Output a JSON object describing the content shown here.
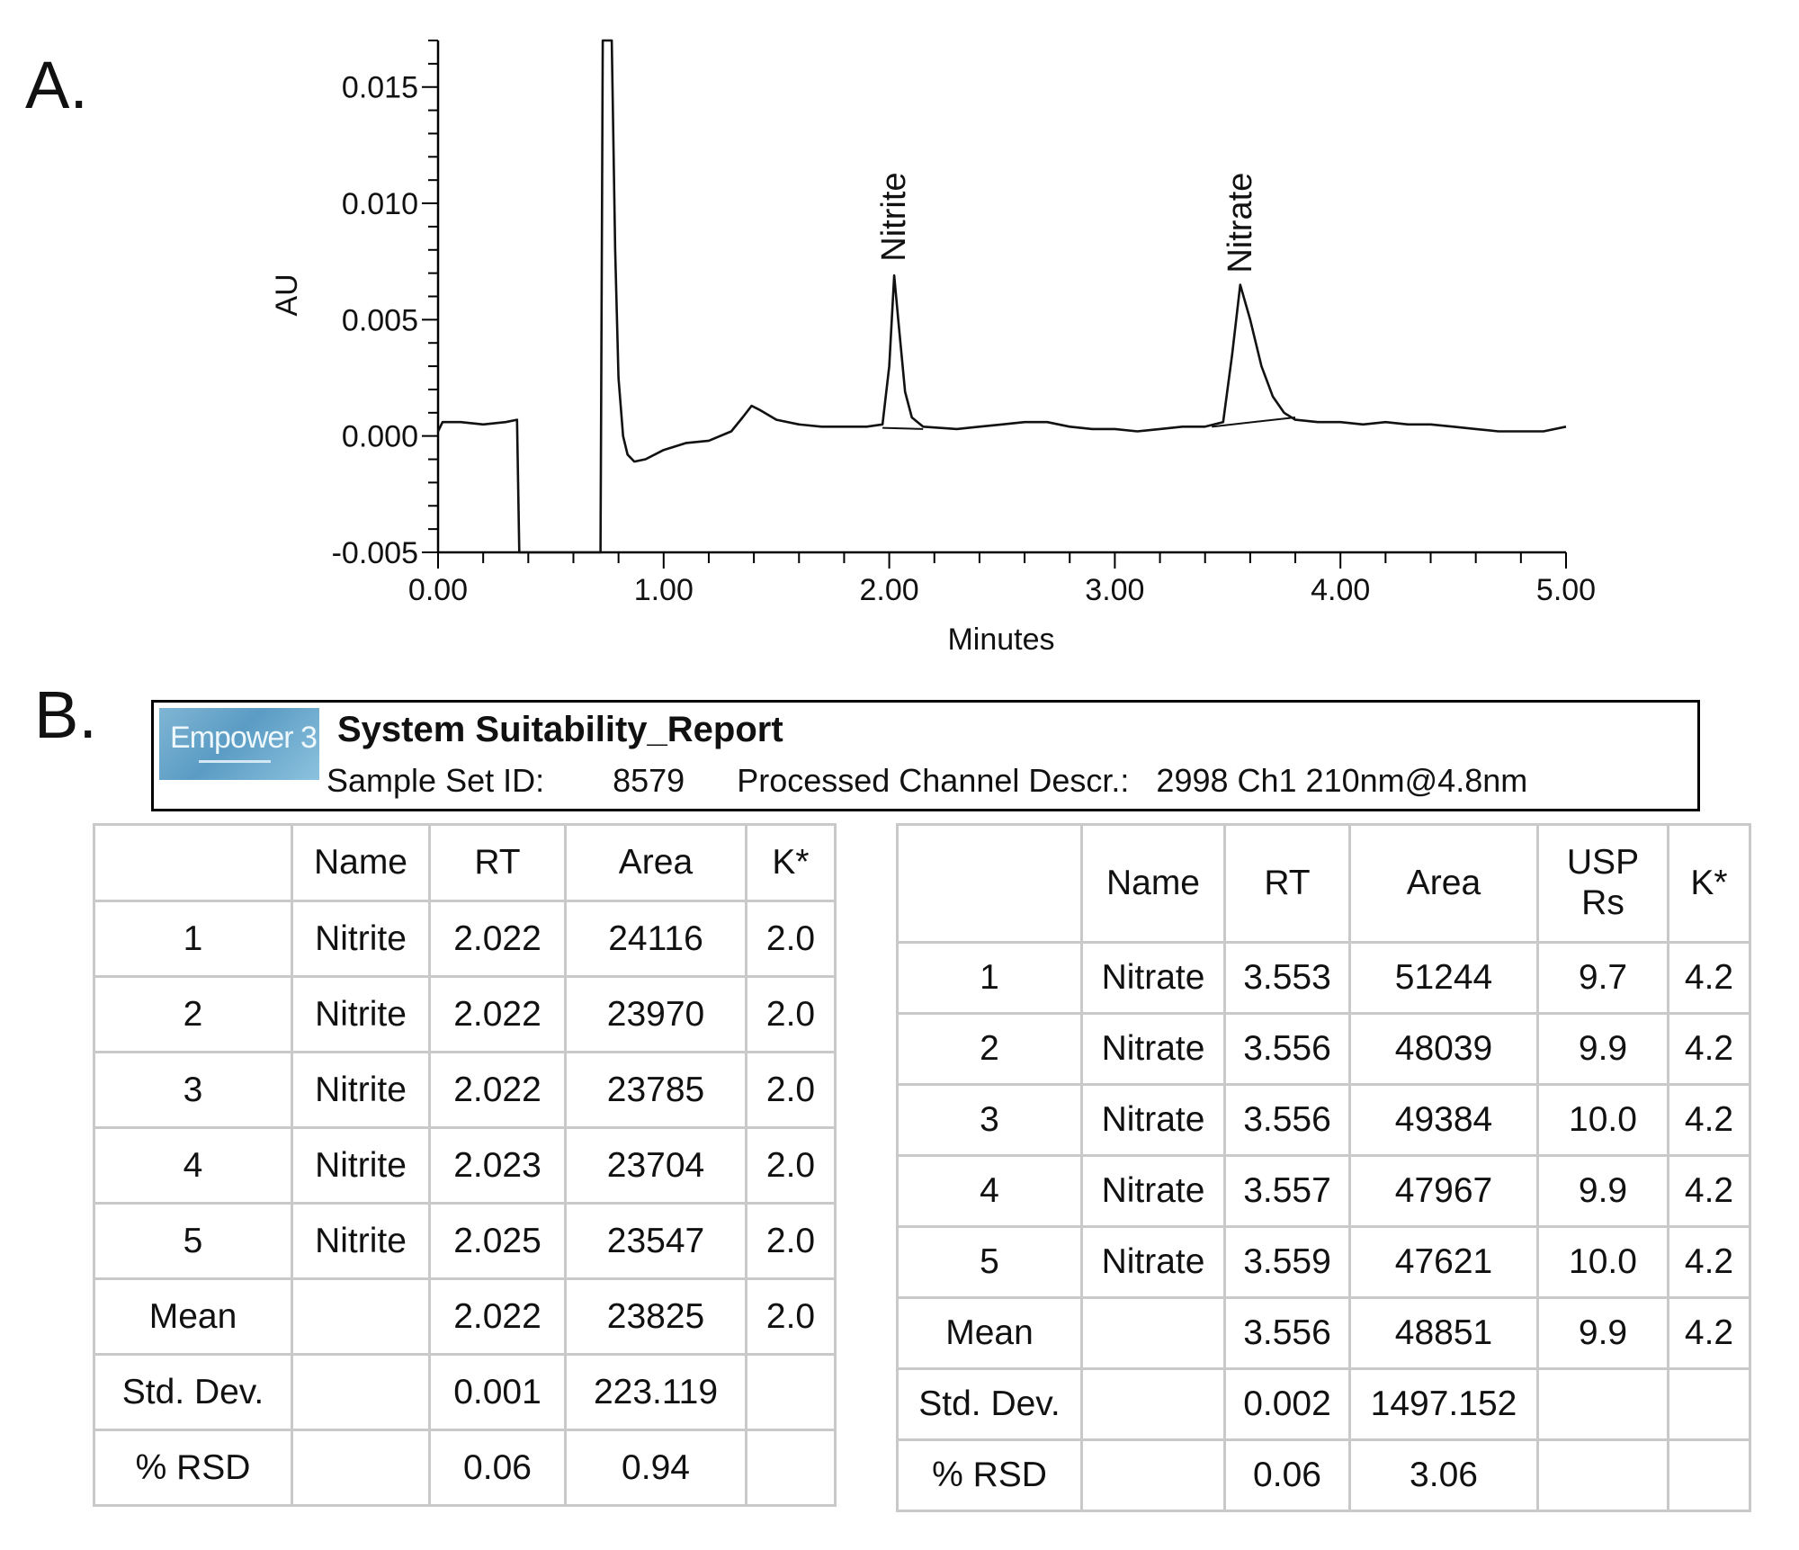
{
  "panels": {
    "a": "A.",
    "b": "B."
  },
  "chart_data": {
    "type": "line",
    "xlabel": "Minutes",
    "ylabel": "AU",
    "xlim": [
      0,
      5
    ],
    "ylim": [
      -0.005,
      0.017
    ],
    "x_ticks": [
      "0.00",
      "1.00",
      "2.00",
      "3.00",
      "4.00",
      "5.00"
    ],
    "y_ticks": [
      "-0.005",
      "0.000",
      "0.005",
      "0.010",
      "0.015"
    ],
    "x_tick_values": [
      0,
      1,
      2,
      3,
      4,
      5
    ],
    "y_tick_values": [
      -0.005,
      0,
      0.005,
      0.01,
      0.015
    ],
    "grid": false,
    "series": [
      {
        "points": [
          [
            0.0,
            0.0002
          ],
          [
            0.02,
            0.0006
          ],
          [
            0.1,
            0.0006
          ],
          [
            0.2,
            0.0005
          ],
          [
            0.3,
            0.0006
          ],
          [
            0.35,
            0.0007
          ],
          [
            0.36,
            -0.005
          ],
          [
            0.72,
            -0.005
          ],
          [
            0.73,
            0.017
          ],
          [
            0.77,
            0.017
          ],
          [
            0.785,
            0.008
          ],
          [
            0.8,
            0.0025
          ],
          [
            0.82,
            0.0
          ],
          [
            0.84,
            -0.0008
          ],
          [
            0.87,
            -0.0011
          ],
          [
            0.92,
            -0.001
          ],
          [
            1.0,
            -0.0006
          ],
          [
            1.1,
            -0.0003
          ],
          [
            1.2,
            -0.0002
          ],
          [
            1.3,
            0.0002
          ],
          [
            1.35,
            0.0008
          ],
          [
            1.39,
            0.0013
          ],
          [
            1.43,
            0.0011
          ],
          [
            1.5,
            0.0007
          ],
          [
            1.6,
            0.0005
          ],
          [
            1.7,
            0.0004
          ],
          [
            1.8,
            0.0004
          ],
          [
            1.9,
            0.0004
          ],
          [
            1.97,
            0.0005
          ],
          [
            2.0,
            0.003
          ],
          [
            2.022,
            0.0069
          ],
          [
            2.04,
            0.005
          ],
          [
            2.07,
            0.0019
          ],
          [
            2.1,
            0.0008
          ],
          [
            2.15,
            0.0004
          ],
          [
            2.3,
            0.0003
          ],
          [
            2.4,
            0.0004
          ],
          [
            2.5,
            0.0005
          ],
          [
            2.6,
            0.0006
          ],
          [
            2.7,
            0.0006
          ],
          [
            2.8,
            0.0004
          ],
          [
            2.9,
            0.0003
          ],
          [
            3.0,
            0.0003
          ],
          [
            3.1,
            0.0002
          ],
          [
            3.2,
            0.0003
          ],
          [
            3.3,
            0.0004
          ],
          [
            3.4,
            0.0004
          ],
          [
            3.48,
            0.0006
          ],
          [
            3.52,
            0.0035
          ],
          [
            3.556,
            0.0065
          ],
          [
            3.6,
            0.005
          ],
          [
            3.65,
            0.003
          ],
          [
            3.7,
            0.0017
          ],
          [
            3.75,
            0.001
          ],
          [
            3.8,
            0.0007
          ],
          [
            3.9,
            0.0006
          ],
          [
            4.0,
            0.0006
          ],
          [
            4.1,
            0.0005
          ],
          [
            4.2,
            0.0006
          ],
          [
            4.3,
            0.0005
          ],
          [
            4.4,
            0.0005
          ],
          [
            4.5,
            0.0004
          ],
          [
            4.6,
            0.0003
          ],
          [
            4.7,
            0.0002
          ],
          [
            4.8,
            0.0002
          ],
          [
            4.9,
            0.0002
          ],
          [
            5.0,
            0.0004
          ]
        ]
      }
    ],
    "baselines": [
      {
        "x": [
          1.97,
          2.15
        ],
        "y": [
          0.00035,
          0.0003
        ]
      },
      {
        "x": [
          3.43,
          3.8
        ],
        "y": [
          0.0004,
          0.0008
        ]
      }
    ],
    "annotations": [
      {
        "text": "Nitrite",
        "x": 2.022,
        "y": 0.0075,
        "rotation": -90
      },
      {
        "text": "Nitrate",
        "x": 3.556,
        "y": 0.007,
        "rotation": -90
      }
    ]
  },
  "report": {
    "logo": "Empower 3",
    "title": "System Suitability_Report",
    "sample_set_label": "Sample Set ID:",
    "sample_set_id": "8579",
    "channel_label": "Processed Channel Descr.:",
    "channel_value": "2998 Ch1 210nm@4.8nm"
  },
  "nitrite_table": {
    "headers": [
      "",
      "Name",
      "RT",
      "Area",
      "K*"
    ],
    "rows": [
      [
        "1",
        "Nitrite",
        "2.022",
        "24116",
        "2.0"
      ],
      [
        "2",
        "Nitrite",
        "2.022",
        "23970",
        "2.0"
      ],
      [
        "3",
        "Nitrite",
        "2.022",
        "23785",
        "2.0"
      ],
      [
        "4",
        "Nitrite",
        "2.023",
        "23704",
        "2.0"
      ],
      [
        "5",
        "Nitrite",
        "2.025",
        "23547",
        "2.0"
      ],
      [
        "Mean",
        "",
        "2.022",
        "23825",
        "2.0"
      ],
      [
        "Std. Dev.",
        "",
        "0.001",
        "223.119",
        ""
      ],
      [
        "% RSD",
        "",
        "0.06",
        "0.94",
        ""
      ]
    ]
  },
  "nitrate_table": {
    "headers": [
      "",
      "Name",
      "RT",
      "Area",
      "USP\nRs",
      "K*"
    ],
    "rows": [
      [
        "1",
        "Nitrate",
        "3.553",
        "51244",
        "9.7",
        "4.2"
      ],
      [
        "2",
        "Nitrate",
        "3.556",
        "48039",
        "9.9",
        "4.2"
      ],
      [
        "3",
        "Nitrate",
        "3.556",
        "49384",
        "10.0",
        "4.2"
      ],
      [
        "4",
        "Nitrate",
        "3.557",
        "47967",
        "9.9",
        "4.2"
      ],
      [
        "5",
        "Nitrate",
        "3.559",
        "47621",
        "10.0",
        "4.2"
      ],
      [
        "Mean",
        "",
        "3.556",
        "48851",
        "9.9",
        "4.2"
      ],
      [
        "Std. Dev.",
        "",
        "0.002",
        "1497.152",
        "",
        ""
      ],
      [
        "% RSD",
        "",
        "0.06",
        "3.06",
        "",
        ""
      ]
    ]
  }
}
